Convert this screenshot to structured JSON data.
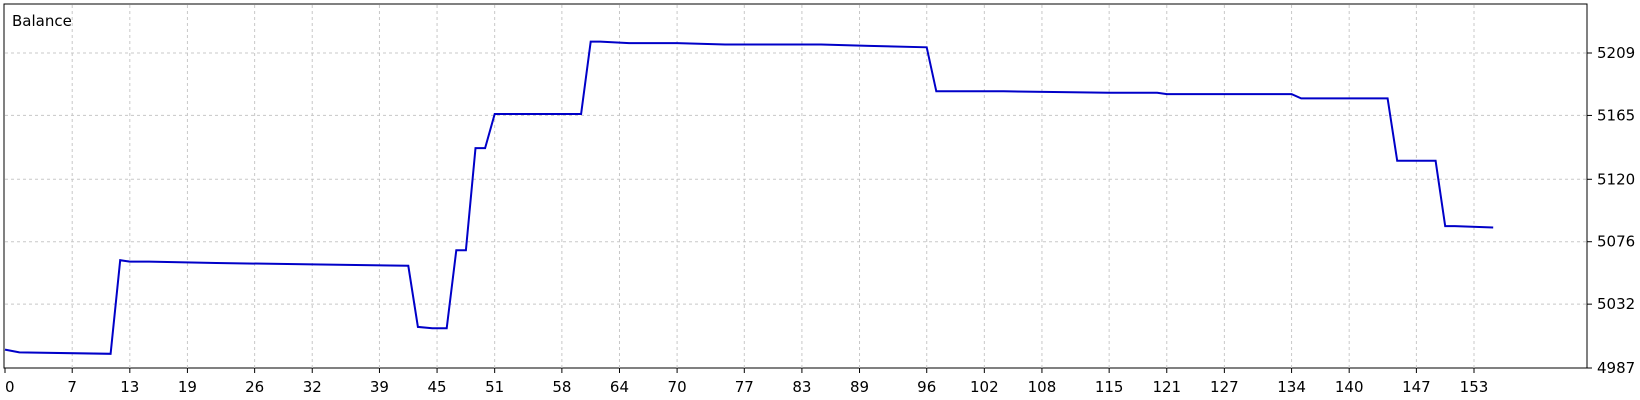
{
  "chart_data": {
    "type": "line",
    "title": "Balance",
    "xlabel": "",
    "ylabel": "",
    "xlim": [
      0,
      155
    ],
    "ylim": [
      4987,
      5240
    ],
    "y_axis_side": "right",
    "grid": true,
    "x_ticks": [
      0,
      7,
      13,
      19,
      26,
      32,
      39,
      45,
      51,
      58,
      64,
      70,
      77,
      83,
      89,
      96,
      102,
      108,
      115,
      121,
      127,
      134,
      140,
      147,
      153
    ],
    "y_ticks": [
      4987,
      5032,
      5076,
      5120,
      5165,
      5209
    ],
    "series": [
      {
        "color": "#0000c8",
        "x": [
          0,
          1.5,
          11,
          12,
          13,
          15,
          22,
          32,
          42,
          43,
          44.5,
          46,
          47,
          48,
          49,
          50,
          51,
          52,
          60,
          61,
          62,
          65,
          70,
          75,
          85,
          90,
          96,
          97,
          98,
          104,
          115,
          120,
          121,
          134,
          135,
          136,
          144,
          145,
          146,
          149,
          150,
          151,
          155
        ],
        "y": [
          5000,
          4998,
          4997,
          5063,
          5062,
          5062,
          5061,
          5060,
          5059,
          5016,
          5015,
          5015,
          5070,
          5070,
          5142,
          5142,
          5166,
          5166,
          5166,
          5217,
          5217,
          5216,
          5216,
          5215,
          5215,
          5214,
          5213,
          5182,
          5182,
          5182,
          5181,
          5181,
          5180,
          5180,
          5177,
          5177,
          5177,
          5133,
          5133,
          5133,
          5087,
          5087,
          5086
        ]
      }
    ]
  }
}
